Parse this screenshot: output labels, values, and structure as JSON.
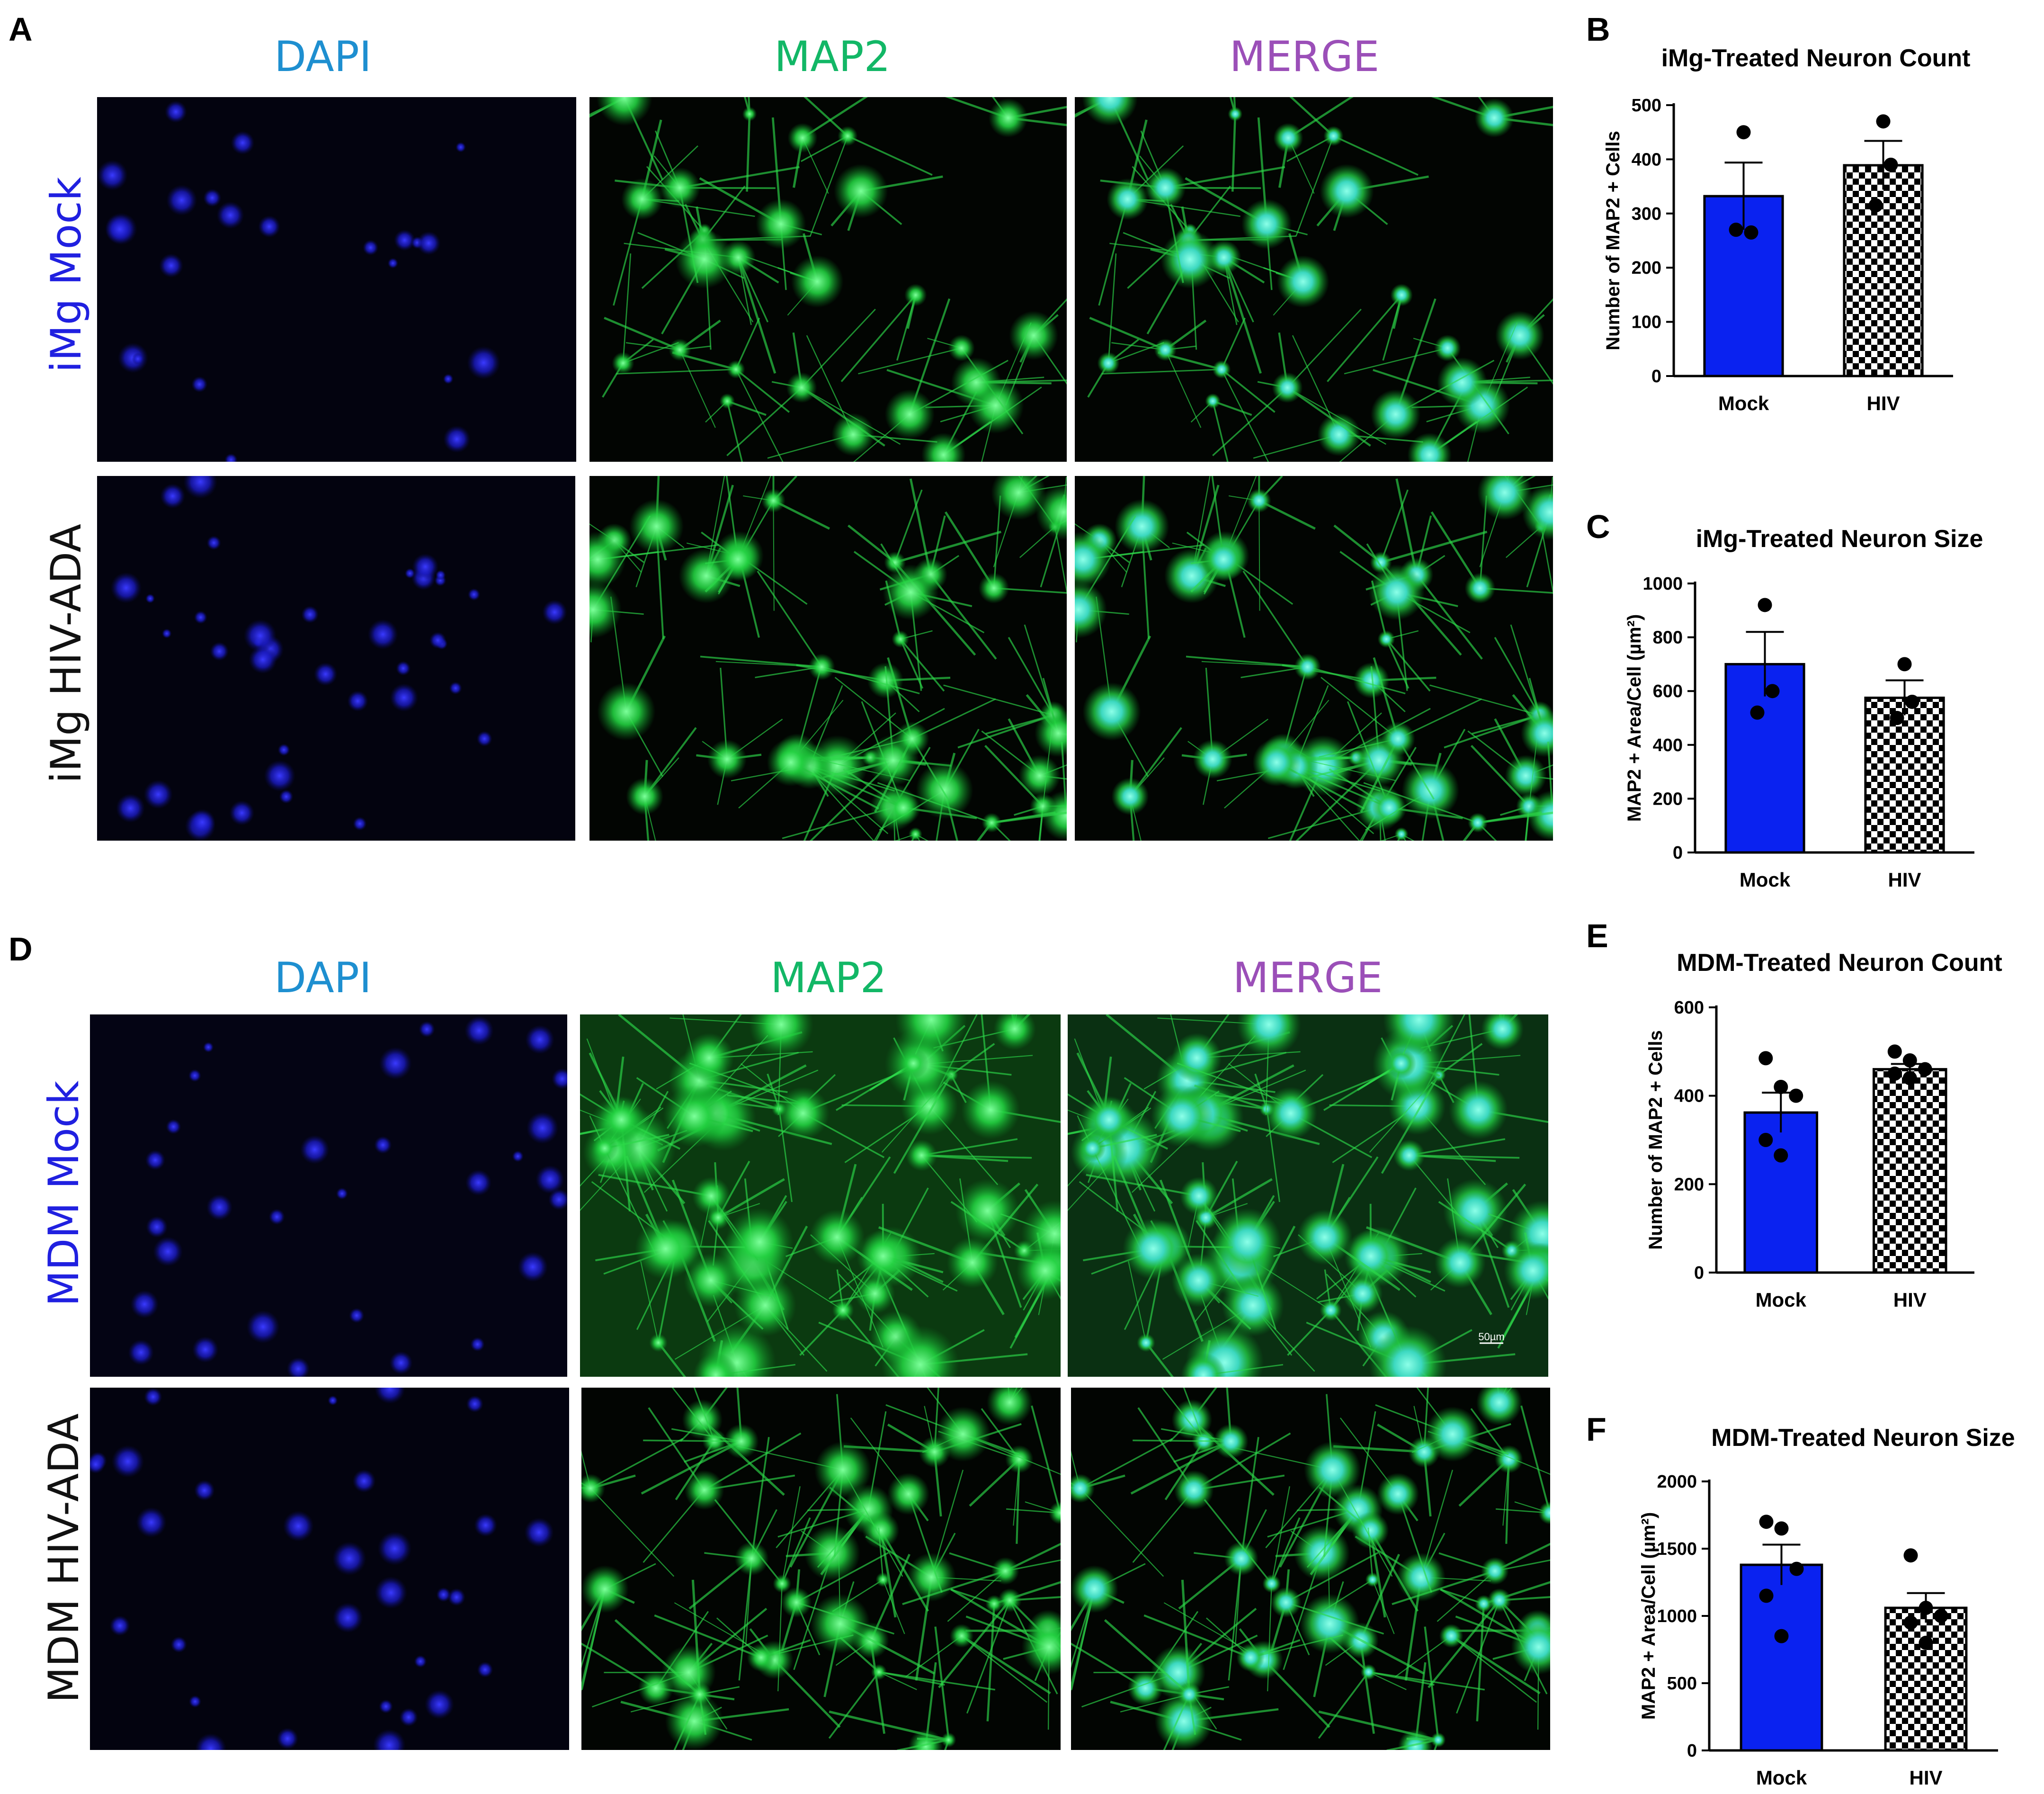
{
  "panel_labels": [
    "A",
    "B",
    "C",
    "D",
    "E",
    "F"
  ],
  "colors": {
    "dapi_label": "#1E8FD0",
    "map2_label": "#12B766",
    "merge_label": "#9B4FB8",
    "mock_row_label": "#2020E0",
    "hiv_row_label": "#111111",
    "mock_bar": "#0A22F0",
    "image_background": "#02020E"
  },
  "micrographs": {
    "top": {
      "column_headers": [
        "DAPI",
        "MAP2",
        "MERGE"
      ],
      "row_labels": [
        "iMg Mock",
        "iMg HIV-ADA"
      ]
    },
    "bottom": {
      "column_headers": [
        "DAPI",
        "MAP2",
        "MERGE"
      ],
      "row_labels": [
        "MDM Mock",
        "MDM HIV-ADA"
      ],
      "scale_bar_text": "50µm"
    }
  },
  "chart_data": [
    {
      "panel": "B",
      "type": "bar",
      "title": "iMg-Treated Neuron Count",
      "ylabel": "Number of MAP2 + Cells",
      "xlabel": "",
      "categories": [
        "Mock",
        "HIV"
      ],
      "values": [
        332,
        389
      ],
      "errors": [
        62,
        45
      ],
      "points": [
        [
          450,
          265,
          270
        ],
        [
          470,
          390,
          315
        ]
      ],
      "ylim": [
        0,
        500
      ],
      "yticks": [
        0,
        100,
        200,
        300,
        400,
        500
      ],
      "fills": [
        "solid",
        "checkered"
      ],
      "grid": false
    },
    {
      "panel": "C",
      "type": "bar",
      "title": "iMg-Treated Neuron Size",
      "ylabel": "MAP2 + Area/Cell (µm²)",
      "xlabel": "",
      "categories": [
        "Mock",
        "HIV"
      ],
      "values": [
        700,
        575
      ],
      "errors": [
        120,
        65
      ],
      "points": [
        [
          920,
          600,
          520
        ],
        [
          700,
          560,
          500
        ]
      ],
      "ylim": [
        0,
        1000
      ],
      "yticks": [
        0,
        200,
        400,
        600,
        800,
        1000
      ],
      "fills": [
        "solid",
        "checkered"
      ],
      "grid": false
    },
    {
      "panel": "E",
      "type": "bar",
      "title": "MDM-Treated Neuron Count",
      "ylabel": "Number of MAP2 + Cells",
      "xlabel": "",
      "categories": [
        "Mock",
        "HIV"
      ],
      "values": [
        362,
        460
      ],
      "errors": [
        45,
        12
      ],
      "points": [
        [
          485,
          420,
          400,
          300,
          265
        ],
        [
          500,
          480,
          460,
          450,
          440
        ]
      ],
      "ylim": [
        0,
        600
      ],
      "yticks": [
        0,
        200,
        400,
        600
      ],
      "fills": [
        "solid",
        "checkered"
      ],
      "grid": false
    },
    {
      "panel": "F",
      "type": "bar",
      "title": "MDM-Treated Neuron Size",
      "ylabel": "MAP2 + Area/Cell (µm²)",
      "xlabel": "",
      "categories": [
        "Mock",
        "HIV"
      ],
      "values": [
        1380,
        1060
      ],
      "errors": [
        150,
        110
      ],
      "points": [
        [
          1700,
          1650,
          1350,
          1150,
          850
        ],
        [
          1450,
          1060,
          1000,
          950,
          800
        ]
      ],
      "ylim": [
        0,
        2000
      ],
      "yticks": [
        0,
        500,
        1000,
        1500,
        2000
      ],
      "fills": [
        "solid",
        "checkered"
      ],
      "grid": false
    }
  ]
}
